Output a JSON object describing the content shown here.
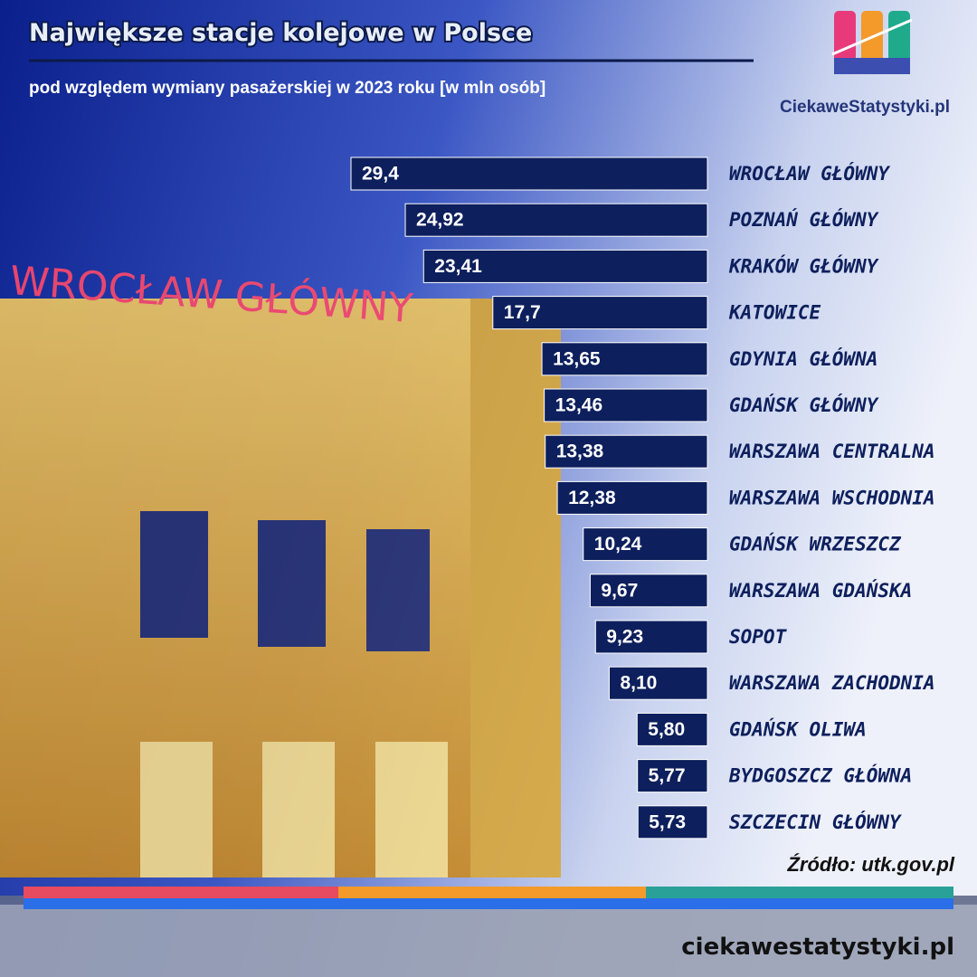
{
  "chart_data": {
    "type": "bar",
    "orientation": "horizontal",
    "title": "Największe stacje kolejowe w Polsce",
    "subtitle": "pod względem wymiany pasażerskiej w 2023 roku [w mln osób]",
    "categories": [
      "WROCŁAW GŁÓWNY",
      "POZNAŃ GŁÓWNY",
      "KRAKÓW GŁÓWNY",
      "KATOWICE",
      "GDYNIA GŁÓWNA",
      "GDAŃSK GŁÓWNY",
      "WARSZAWA CENTRALNA",
      "WARSZAWA WSCHODNIA",
      "GDAŃSK WRZESZCZ",
      "WARSZAWA GDAŃSKA",
      "SOPOT",
      "WARSZAWA ZACHODNIA",
      "GDAŃSK OLIWA",
      "BYDGOSZCZ GŁÓWNA",
      "SZCZECIN GŁÓWNY"
    ],
    "values": [
      29.4,
      24.92,
      23.41,
      17.7,
      13.65,
      13.46,
      13.38,
      12.38,
      10.24,
      9.67,
      9.23,
      8.1,
      5.8,
      5.77,
      5.73
    ],
    "value_labels": [
      "29,4",
      "24,92",
      "23,41",
      "17,7",
      "13,65",
      "13,46",
      "13,38",
      "12,38",
      "10,24",
      "9,67",
      "9,23",
      "8,10",
      "5,80",
      "5,77",
      "5,73"
    ],
    "color": "#0d1f5c",
    "source": "Źródło: utk.gov.pl"
  },
  "brand": "CiekaweStatystyki.pl",
  "footer": "ciekawestatystyki.pl"
}
